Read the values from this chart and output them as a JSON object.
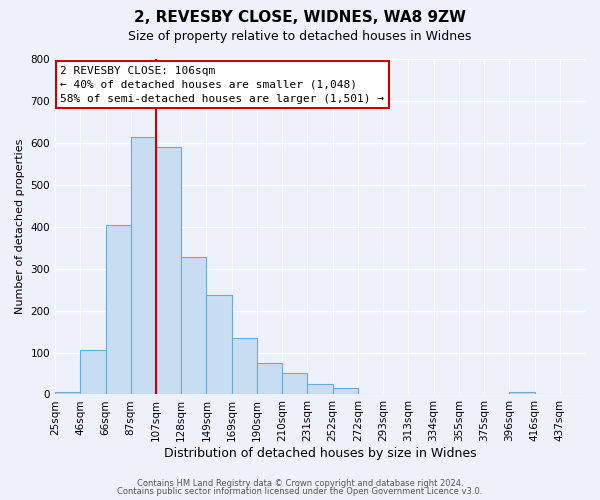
{
  "title": "2, REVESBY CLOSE, WIDNES, WA8 9ZW",
  "subtitle": "Size of property relative to detached houses in Widnes",
  "xlabel": "Distribution of detached houses by size in Widnes",
  "ylabel": "Number of detached properties",
  "bin_labels": [
    "25sqm",
    "46sqm",
    "66sqm",
    "87sqm",
    "107sqm",
    "128sqm",
    "149sqm",
    "169sqm",
    "190sqm",
    "210sqm",
    "231sqm",
    "252sqm",
    "272sqm",
    "293sqm",
    "313sqm",
    "334sqm",
    "355sqm",
    "375sqm",
    "396sqm",
    "416sqm",
    "437sqm"
  ],
  "bar_values": [
    5,
    106,
    403,
    614,
    591,
    329,
    237,
    135,
    76,
    50,
    25,
    15,
    0,
    0,
    0,
    0,
    0,
    0,
    7,
    0,
    0
  ],
  "bar_color": "#c9ddf2",
  "bar_edge_color": "#6aabd6",
  "property_line_x": 4,
  "property_line_color": "#cc0000",
  "annotation_title": "2 REVESBY CLOSE: 106sqm",
  "annotation_line1": "← 40% of detached houses are smaller (1,048)",
  "annotation_line2": "58% of semi-detached houses are larger (1,501) →",
  "annotation_box_color": "#cc0000",
  "ylim": [
    0,
    800
  ],
  "yticks": [
    0,
    100,
    200,
    300,
    400,
    500,
    600,
    700,
    800
  ],
  "footer1": "Contains HM Land Registry data © Crown copyright and database right 2024.",
  "footer2": "Contains public sector information licensed under the Open Government Licence v3.0.",
  "bg_color": "#edf2fa",
  "grid_color": "#ffffff",
  "title_fontsize": 11,
  "subtitle_fontsize": 9,
  "annot_fontsize": 8,
  "xlabel_fontsize": 9,
  "ylabel_fontsize": 8,
  "tick_fontsize": 7.5,
  "footer_fontsize": 6
}
